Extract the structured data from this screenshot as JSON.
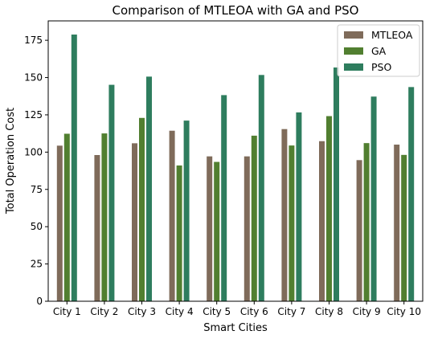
{
  "chart_data": {
    "type": "bar",
    "title": "Comparison of MTLEOA with GA and PSO",
    "xlabel": "Smart Cities",
    "ylabel": "Total Operation Cost",
    "categories": [
      "City 1",
      "City 2",
      "City 3",
      "City 4",
      "City 5",
      "City 6",
      "City 7",
      "City 8",
      "City 9",
      "City 10"
    ],
    "ylim": [
      0,
      188
    ],
    "yticks": [
      0,
      25,
      50,
      75,
      100,
      125,
      150,
      175
    ],
    "grid": false,
    "legend_position": "top-right",
    "series": [
      {
        "name": "MTLEOA",
        "color": "#7f6b5a",
        "values": [
          104.5,
          98.2,
          106.1,
          114.5,
          97.3,
          97.3,
          115.6,
          107.5,
          94.8,
          105.2
        ]
      },
      {
        "name": "GA",
        "color": "#517f30",
        "values": [
          112.5,
          112.7,
          123.1,
          91.2,
          93.6,
          111.2,
          104.6,
          124.3,
          106.2,
          98.3
        ]
      },
      {
        "name": "PSO",
        "color": "#2e7d5e",
        "values": [
          179.0,
          145.3,
          150.8,
          121.3,
          138.4,
          151.9,
          126.8,
          156.9,
          137.4,
          143.8
        ]
      }
    ]
  }
}
